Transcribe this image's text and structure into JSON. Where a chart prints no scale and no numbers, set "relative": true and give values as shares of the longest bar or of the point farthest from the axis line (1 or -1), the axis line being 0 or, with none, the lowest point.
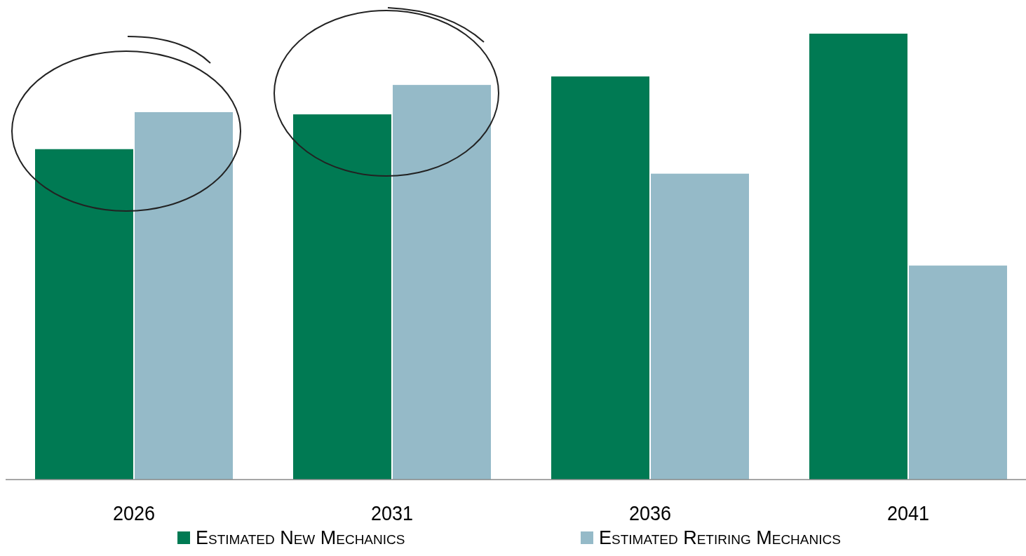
{
  "chart_data": {
    "type": "bar",
    "relative": true,
    "categories": [
      "2026",
      "2031",
      "2036",
      "2041"
    ],
    "series": [
      {
        "name": "Estimated New Mechanics",
        "color": "#007a53",
        "values": [
          0.741,
          0.819,
          0.904,
          1
        ]
      },
      {
        "name": "Estimated Retiring Mechanics",
        "color": "#95bac8",
        "values": [
          0.824,
          0.885,
          0.686,
          0.48
        ]
      }
    ],
    "legend": "bottom"
  }
}
